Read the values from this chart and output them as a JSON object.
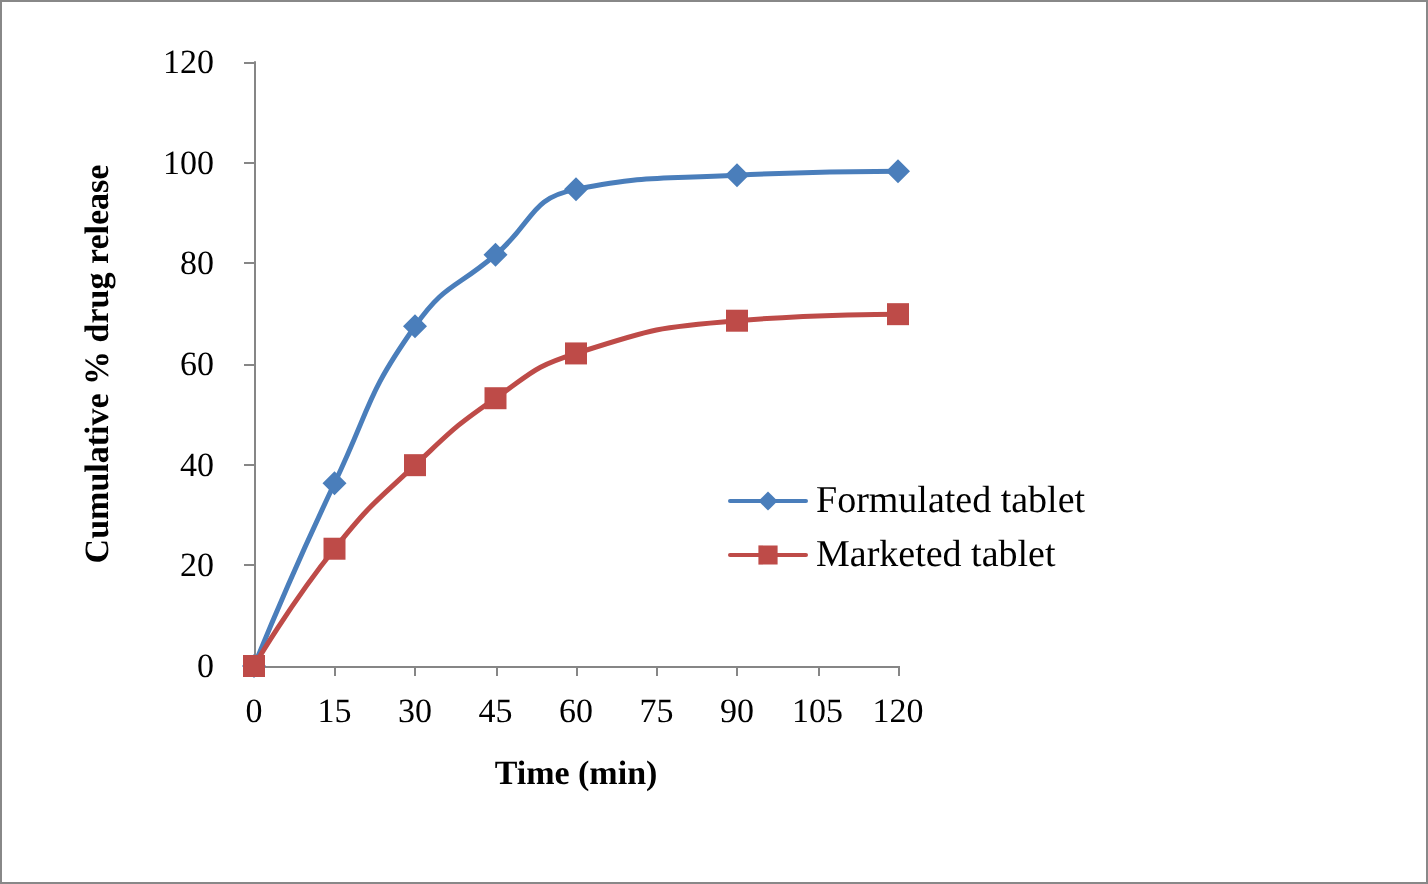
{
  "chart_data": {
    "type": "line",
    "xlabel": "Time (min)",
    "ylabel": "Cumulative % drug release",
    "x": [
      0,
      15,
      30,
      45,
      60,
      90,
      120
    ],
    "series": [
      {
        "name": "Formulated tablet",
        "color": "#4a7ebb",
        "marker": "diamond",
        "values": [
          0,
          36.3,
          67.5,
          81.7,
          94.7,
          97.5,
          98.3
        ]
      },
      {
        "name": "Marketed tablet",
        "color": "#be4b48",
        "marker": "square",
        "values": [
          0,
          23.3,
          39.9,
          53.2,
          62.1,
          68.6,
          69.9
        ]
      }
    ],
    "xlim": [
      0,
      120
    ],
    "xticks": [
      0,
      15,
      30,
      45,
      60,
      75,
      90,
      105,
      120
    ],
    "ylim": [
      0,
      120
    ],
    "yticks": [
      0,
      20,
      40,
      60,
      80,
      100,
      120
    ],
    "grid": false,
    "legend": "right",
    "line_style": "solid"
  }
}
